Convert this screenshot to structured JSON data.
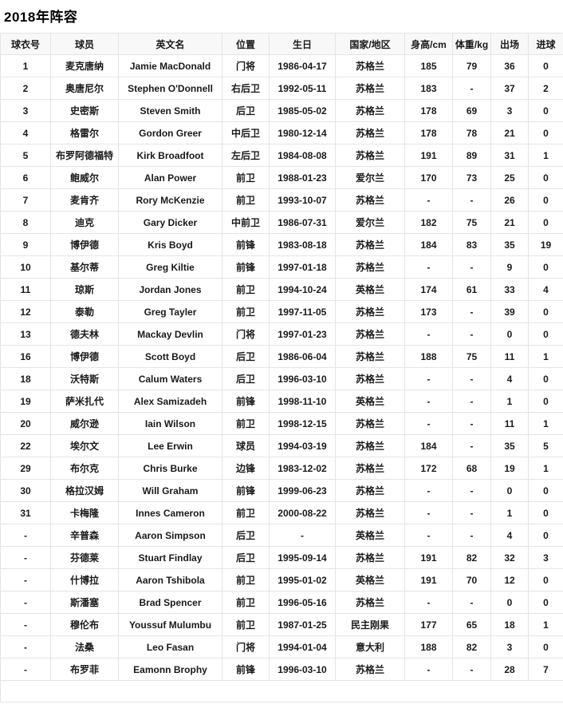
{
  "page": {
    "title": "2018年阵容"
  },
  "colors": {
    "border": "#e4e4e4",
    "header_bg": "#f8f8f8",
    "text": "#1a1a1a",
    "background": "#ffffff"
  },
  "table": {
    "columns": [
      "球衣号",
      "球员",
      "英文名",
      "位置",
      "生日",
      "国家/地区",
      "身高/cm",
      "体重/kg",
      "出场",
      "进球"
    ],
    "rows": [
      [
        "1",
        "麦克唐纳",
        "Jamie MacDonald",
        "门将",
        "1986-04-17",
        "苏格兰",
        "185",
        "79",
        "36",
        "0"
      ],
      [
        "2",
        "奥唐尼尔",
        "Stephen O'Donnell",
        "右后卫",
        "1992-05-11",
        "苏格兰",
        "183",
        "-",
        "37",
        "2"
      ],
      [
        "3",
        "史密斯",
        "Steven Smith",
        "后卫",
        "1985-05-02",
        "苏格兰",
        "178",
        "69",
        "3",
        "0"
      ],
      [
        "4",
        "格雷尔",
        "Gordon Greer",
        "中后卫",
        "1980-12-14",
        "苏格兰",
        "178",
        "78",
        "21",
        "0"
      ],
      [
        "5",
        "布罗阿德福特",
        "Kirk Broadfoot",
        "左后卫",
        "1984-08-08",
        "苏格兰",
        "191",
        "89",
        "31",
        "1"
      ],
      [
        "6",
        "鲍威尔",
        "Alan Power",
        "前卫",
        "1988-01-23",
        "爱尔兰",
        "170",
        "73",
        "25",
        "0"
      ],
      [
        "7",
        "麦肯齐",
        "Rory McKenzie",
        "前卫",
        "1993-10-07",
        "苏格兰",
        "-",
        "-",
        "26",
        "0"
      ],
      [
        "8",
        "迪克",
        "Gary Dicker",
        "中前卫",
        "1986-07-31",
        "爱尔兰",
        "182",
        "75",
        "21",
        "0"
      ],
      [
        "9",
        "博伊德",
        "Kris Boyd",
        "前锋",
        "1983-08-18",
        "苏格兰",
        "184",
        "83",
        "35",
        "19"
      ],
      [
        "10",
        "基尔蒂",
        "Greg Kiltie",
        "前锋",
        "1997-01-18",
        "苏格兰",
        "-",
        "-",
        "9",
        "0"
      ],
      [
        "11",
        "琼斯",
        "Jordan Jones",
        "前卫",
        "1994-10-24",
        "英格兰",
        "174",
        "61",
        "33",
        "4"
      ],
      [
        "12",
        "泰勒",
        "Greg Tayler",
        "前卫",
        "1997-11-05",
        "苏格兰",
        "173",
        "-",
        "39",
        "0"
      ],
      [
        "13",
        "德夫林",
        "Mackay Devlin",
        "门将",
        "1997-01-23",
        "苏格兰",
        "-",
        "-",
        "0",
        "0"
      ],
      [
        "16",
        "博伊德",
        "Scott Boyd",
        "后卫",
        "1986-06-04",
        "苏格兰",
        "188",
        "75",
        "11",
        "1"
      ],
      [
        "18",
        "沃特斯",
        "Calum Waters",
        "后卫",
        "1996-03-10",
        "苏格兰",
        "-",
        "-",
        "4",
        "0"
      ],
      [
        "19",
        "萨米扎代",
        "Alex Samizadeh",
        "前锋",
        "1998-11-10",
        "英格兰",
        "-",
        "-",
        "1",
        "0"
      ],
      [
        "20",
        "威尔逊",
        "Iain Wilson",
        "前卫",
        "1998-12-15",
        "苏格兰",
        "-",
        "-",
        "11",
        "1"
      ],
      [
        "22",
        "埃尔文",
        "Lee Erwin",
        "球员",
        "1994-03-19",
        "苏格兰",
        "184",
        "-",
        "35",
        "5"
      ],
      [
        "29",
        "布尔克",
        "Chris Burke",
        "边锋",
        "1983-12-02",
        "苏格兰",
        "172",
        "68",
        "19",
        "1"
      ],
      [
        "30",
        "格拉汉姆",
        "Will Graham",
        "前锋",
        "1999-06-23",
        "苏格兰",
        "-",
        "-",
        "0",
        "0"
      ],
      [
        "31",
        "卡梅隆",
        "Innes Cameron",
        "前卫",
        "2000-08-22",
        "苏格兰",
        "-",
        "-",
        "1",
        "0"
      ],
      [
        "-",
        "辛普森",
        "Aaron Simpson",
        "后卫",
        "-",
        "英格兰",
        "-",
        "-",
        "4",
        "0"
      ],
      [
        "-",
        "芬德莱",
        "Stuart Findlay",
        "后卫",
        "1995-09-14",
        "苏格兰",
        "191",
        "82",
        "32",
        "3"
      ],
      [
        "-",
        "什博拉",
        "Aaron Tshibola",
        "前卫",
        "1995-01-02",
        "英格兰",
        "191",
        "70",
        "12",
        "0"
      ],
      [
        "-",
        "斯潘塞",
        "Brad Spencer",
        "前卫",
        "1996-05-16",
        "苏格兰",
        "-",
        "-",
        "0",
        "0"
      ],
      [
        "-",
        "穆伦布",
        "Youssuf Mulumbu",
        "前卫",
        "1987-01-25",
        "民主刚果",
        "177",
        "65",
        "18",
        "1"
      ],
      [
        "-",
        "法桑",
        "Leo Fasan",
        "门将",
        "1994-01-04",
        "意大利",
        "188",
        "82",
        "3",
        "0"
      ],
      [
        "-",
        "布罗菲",
        "Eamonn Brophy",
        "前锋",
        "1996-03-10",
        "苏格兰",
        "-",
        "-",
        "28",
        "7"
      ]
    ]
  }
}
